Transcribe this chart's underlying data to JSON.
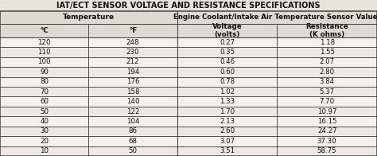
{
  "title": "IAT/ECT SENSOR VOLTAGE AND RESISTANCE SPECIFICATIONS",
  "header1": [
    "Temperature",
    "Engine Coolant/Intake Air Temperature Sensor Values"
  ],
  "header2": [
    "°C",
    "°F",
    "Voltage\n(volts)",
    "Resistance\n(K ohms)"
  ],
  "rows": [
    [
      "120",
      "248",
      "0.27",
      "1.18"
    ],
    [
      "110",
      "230",
      "0.35",
      "1.55"
    ],
    [
      "100",
      "212",
      "0.46",
      "2.07"
    ],
    [
      "90",
      "194",
      "0.60",
      "2.80"
    ],
    [
      "80",
      "176",
      "0.78",
      "3.84"
    ],
    [
      "70",
      "158",
      "1.02",
      "5.37"
    ],
    [
      "60",
      "140",
      "1.33",
      "7.70"
    ],
    [
      "50",
      "122",
      "1.70",
      "10.97"
    ],
    [
      "40",
      "104",
      "2.13",
      "16.15"
    ],
    [
      "30",
      "86",
      "2.60",
      "24.27"
    ],
    [
      "20",
      "68",
      "3.07",
      "37.30"
    ],
    [
      "10",
      "50",
      "3.51",
      "58.75"
    ]
  ],
  "bg_color": "#e8e4dc",
  "table_bg": "#f0ede8",
  "header_bg": "#dedad2",
  "border_color": "#444444",
  "text_color": "#111111",
  "title_fontsize": 7.0,
  "header1_fontsize": 6.5,
  "header2_fontsize": 6.3,
  "cell_fontsize": 6.2,
  "col_splits": [
    0.0,
    0.235,
    0.47,
    0.735,
    1.0
  ]
}
